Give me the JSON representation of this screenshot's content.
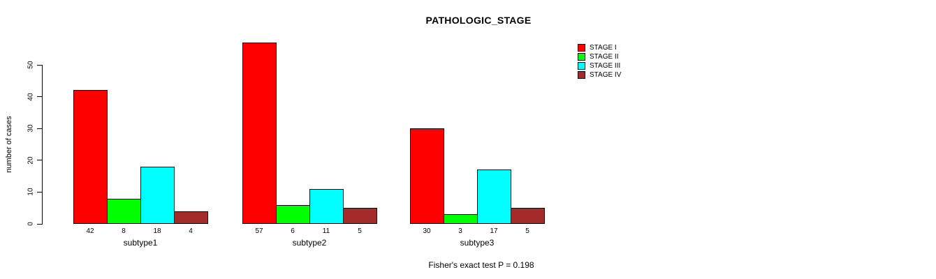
{
  "title": "PATHOLOGIC_STAGE",
  "footer": "Fisher's exact test P = 0.198",
  "chart_data": {
    "type": "bar",
    "title": "PATHOLOGIC_STAGE",
    "xlabel": "",
    "ylabel": "number of cases",
    "categories": [
      "subtype1",
      "subtype2",
      "subtype3"
    ],
    "series": [
      {
        "name": "STAGE I",
        "color": "#ff0000",
        "values": [
          42,
          57,
          30
        ]
      },
      {
        "name": "STAGE II",
        "color": "#00ff00",
        "values": [
          8,
          6,
          3
        ]
      },
      {
        "name": "STAGE III",
        "color": "#00ffff",
        "values": [
          18,
          11,
          17
        ]
      },
      {
        "name": "STAGE IV",
        "color": "#a52a2a",
        "values": [
          4,
          5,
          5
        ]
      }
    ],
    "yticks": [
      0,
      10,
      20,
      30,
      40,
      50
    ],
    "ylim": [
      0,
      57
    ],
    "grid": false,
    "legend_position": "top-right",
    "bar_labels_under_axis": true,
    "annotation": "Fisher's exact test P = 0.198"
  }
}
